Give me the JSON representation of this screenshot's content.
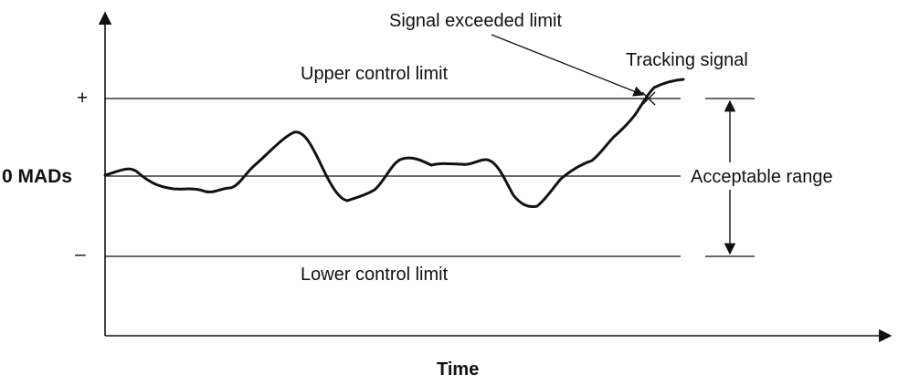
{
  "labels": {
    "plus": "+",
    "zero": "0 MADs",
    "minus": "–",
    "upper": "Upper control limit",
    "lower": "Lower control limit",
    "acceptable": "Acceptable range",
    "exceeded": "Signal exceeded limit",
    "tracking": "Tracking signal",
    "x_axis": "Time"
  },
  "colors": {
    "ink": "#111111",
    "background": "#ffffff"
  }
}
